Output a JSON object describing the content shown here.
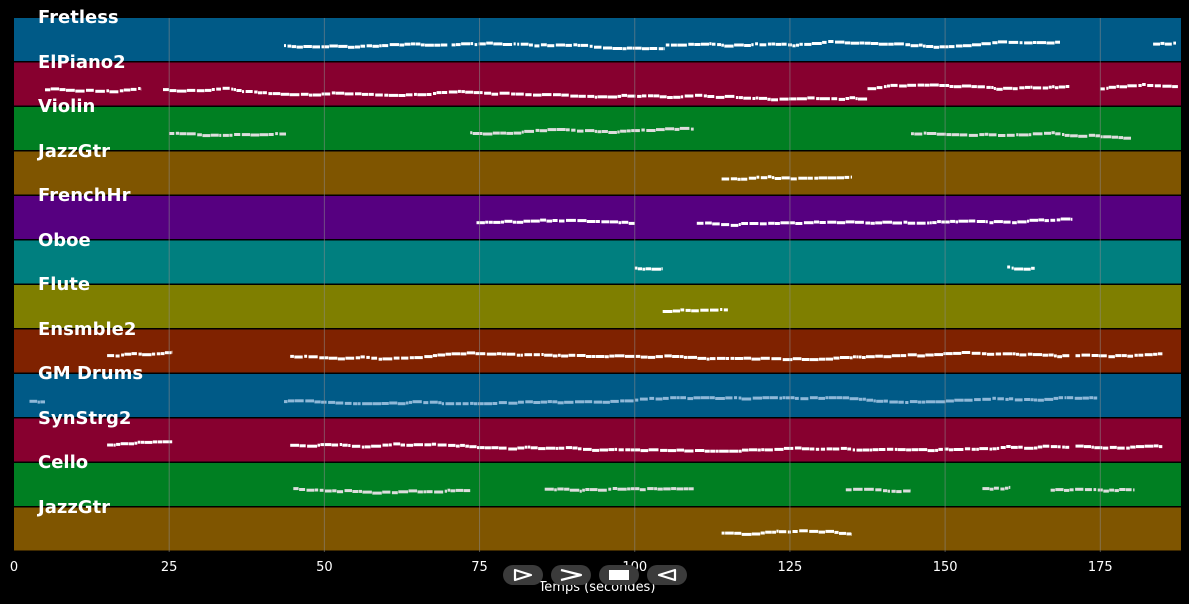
{
  "tracks": [
    {
      "name": "Fretless",
      "color": "#005a87",
      "note_color": "#ffffff",
      "segments": [
        [
          43.5,
          69.8
        ],
        [
          70.5,
          104.8
        ],
        [
          105,
          168.5
        ],
        [
          183.5,
          187.2
        ]
      ],
      "spread": 4
    },
    {
      "name": "ElPiano2",
      "color": "#87002f",
      "note_color": "#ffffff",
      "segments": [
        [
          5,
          20.5
        ],
        [
          24,
          137.5
        ],
        [
          137.5,
          170
        ],
        [
          175,
          187.5
        ]
      ],
      "spread": 14
    },
    {
      "name": "Violin",
      "color": "#007f22",
      "note_color": "#dddddd",
      "segments": [
        [
          25,
          44
        ],
        [
          73.5,
          109.5
        ],
        [
          144.5,
          180
        ]
      ],
      "spread": 6
    },
    {
      "name": "JazzGtr",
      "color": "#7f5500",
      "note_color": "#ffffff",
      "segments": [
        [
          114,
          135
        ]
      ],
      "spread": 6
    },
    {
      "name": "FrenchHr",
      "color": "#560080",
      "note_color": "#ffffff",
      "segments": [
        [
          74.5,
          100
        ],
        [
          110,
          170.5
        ]
      ],
      "spread": 6
    },
    {
      "name": "Oboe",
      "color": "#007f7f",
      "note_color": "#ffffff",
      "segments": [
        [
          100,
          104.5
        ],
        [
          160,
          164.5
        ]
      ],
      "spread": 2
    },
    {
      "name": "Flute",
      "color": "#7f7f00",
      "note_color": "#ffffff",
      "segments": [
        [
          104.5,
          115
        ]
      ],
      "spread": 4
    },
    {
      "name": "Ensmble2",
      "color": "#7f2200",
      "note_color": "#ffffff",
      "segments": [
        [
          15,
          25.5
        ],
        [
          44.5,
          170
        ],
        [
          171,
          185
        ]
      ],
      "spread": 6
    },
    {
      "name": "GM Drums",
      "color": "#005a87",
      "note_color": "#8fb8d8",
      "segments": [
        [
          2.5,
          5
        ],
        [
          43.5,
          174.5
        ]
      ],
      "spread": 3
    },
    {
      "name": "SynStrg2",
      "color": "#87002f",
      "note_color": "#ffffff",
      "segments": [
        [
          15,
          25.5
        ],
        [
          44.5,
          170
        ],
        [
          171,
          185
        ]
      ],
      "spread": 6
    },
    {
      "name": "Cello",
      "color": "#007f22",
      "note_color": "#dddddd",
      "segments": [
        [
          45,
          73.5
        ],
        [
          85.5,
          109.5
        ],
        [
          134,
          144.5
        ],
        [
          156,
          160.5
        ],
        [
          167,
          180.5
        ]
      ],
      "spread": 4
    },
    {
      "name": "JazzGtr",
      "color": "#7f5500",
      "note_color": "#ffffff",
      "segments": [
        [
          114,
          135
        ]
      ],
      "spread": 6
    }
  ],
  "x_axis": {
    "min": 0,
    "max": 188,
    "ticks": [
      "0",
      "25",
      "50",
      "75",
      "100",
      "125",
      "150",
      "175"
    ],
    "tick_values": [
      0,
      25,
      50,
      75,
      100,
      125,
      150,
      175
    ],
    "label": "Temps (secondes)"
  },
  "controls": [
    {
      "name": "play-button",
      "icon": "play-icon"
    },
    {
      "name": "forward-button",
      "icon": "forward-icon"
    },
    {
      "name": "stop-button",
      "icon": "stop-icon"
    },
    {
      "name": "rewind-button",
      "icon": "rewind-icon"
    }
  ],
  "grid_color": "#8a8a8a"
}
